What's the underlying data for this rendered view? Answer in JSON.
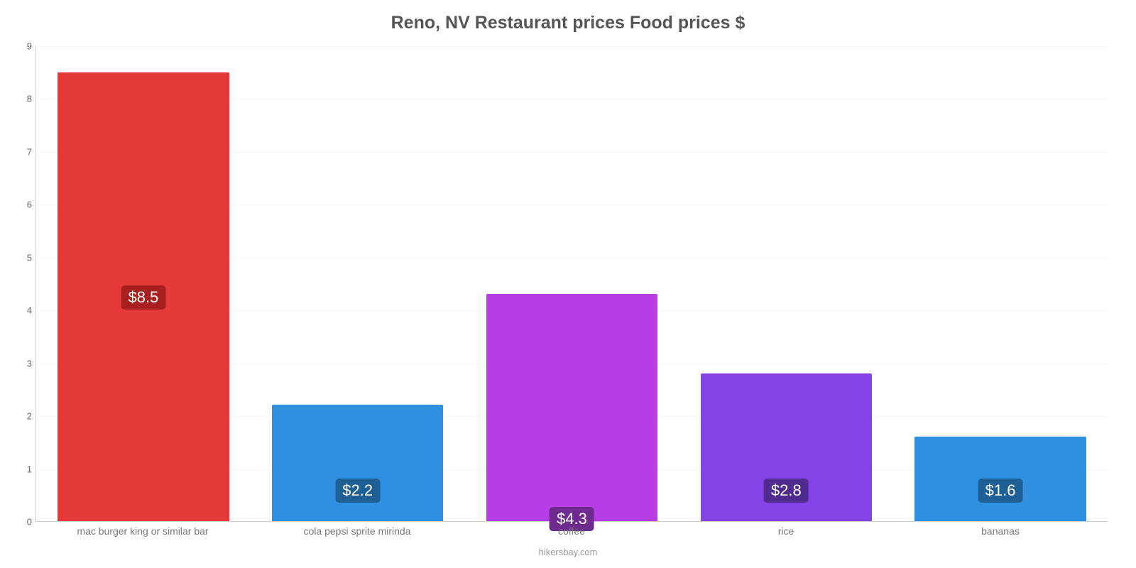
{
  "chart": {
    "type": "bar",
    "title": "Reno, NV Restaurant prices Food prices $",
    "title_fontsize": 25,
    "title_color": "#555555",
    "source": "hikersbay.com",
    "background_color": "#ffffff",
    "grid_color": "#f5f5f5",
    "axis_color": "#cccccc",
    "x_label_color": "#777777",
    "y_label_color": "#666666",
    "ylim": [
      0,
      9
    ],
    "ytick_step": 1,
    "yticks": [
      0,
      1,
      2,
      3,
      4,
      5,
      6,
      7,
      8,
      9
    ],
    "bar_width_pct": 80,
    "value_label_fontsize": 22,
    "categories": [
      "mac burger king or similar bar",
      "cola pepsi sprite mirinda",
      "coffee",
      "rice",
      "bananas"
    ],
    "values": [
      8.5,
      2.2,
      4.3,
      2.8,
      1.6
    ],
    "value_labels": [
      "$8.5",
      "$2.2",
      "$4.3",
      "$2.8",
      "$1.6"
    ],
    "bar_colors": [
      "#e63939",
      "#2f8fe0",
      "#b53ee6",
      "#8443e6",
      "#2f8fe0"
    ],
    "label_bg_colors": [
      "#a91f1f",
      "#1e5f95",
      "#6f2a8f",
      "#4f2b8f",
      "#1e5f95"
    ]
  }
}
